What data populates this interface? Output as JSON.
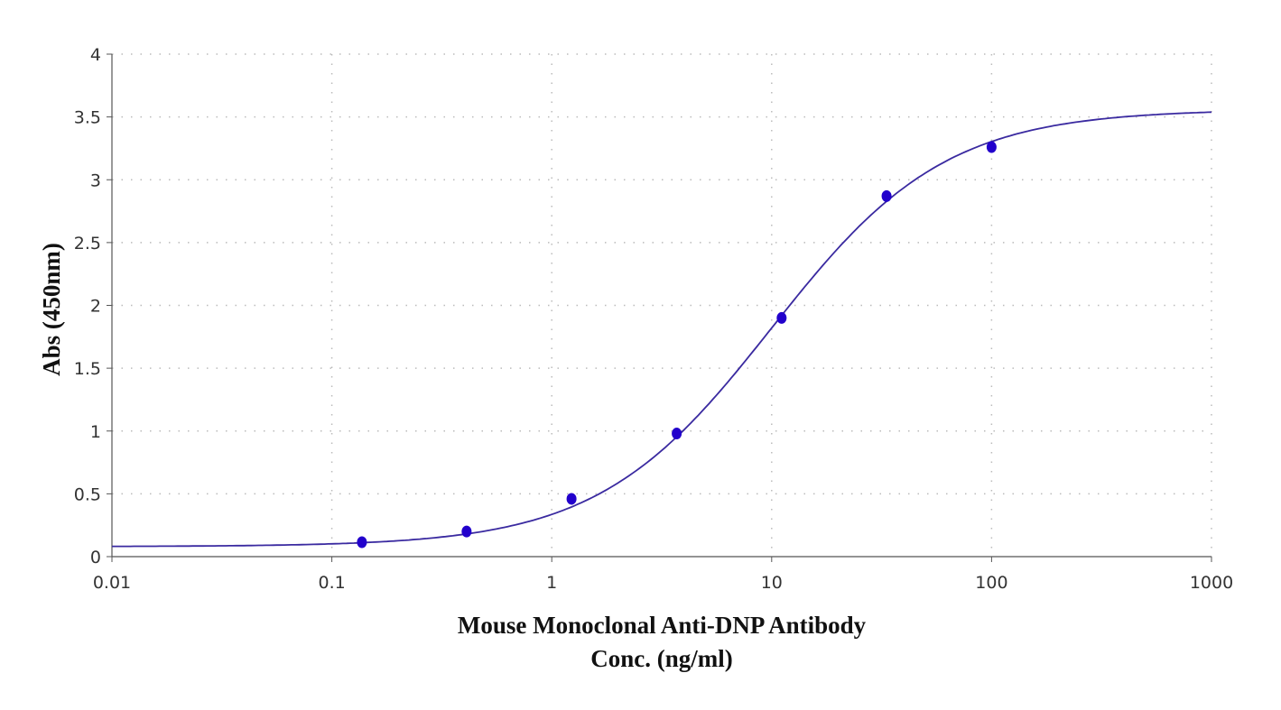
{
  "chart_data": {
    "type": "scatter",
    "title": "",
    "xlabel_lines": [
      "Mouse Monoclonal Anti-DNP Antibody",
      "Conc. (ng/ml)"
    ],
    "ylabel": "Abs (450nm)",
    "x_scale": "log",
    "xlim": [
      0.01,
      1000
    ],
    "ylim": [
      0,
      4
    ],
    "x_ticks": [
      "0.01",
      "0.1",
      "1",
      "10",
      "100",
      "1000"
    ],
    "y_ticks": [
      "0",
      "0.5",
      "1",
      "1.5",
      "2",
      "2.5",
      "3",
      "3.5",
      "4"
    ],
    "grid": true,
    "legend": "none",
    "series": [
      {
        "type": "scatter",
        "x": [
          0.137,
          0.41,
          1.23,
          3.7,
          11.1,
          33.3,
          100
        ],
        "y": [
          0.115,
          0.2,
          0.46,
          0.98,
          1.9,
          2.87,
          3.26
        ],
        "color": "#2200cc"
      },
      {
        "type": "line",
        "fit": {
          "model": "4PL",
          "bottom": 0.08,
          "top": 3.56,
          "ec50": 10,
          "hill": 1.1
        },
        "x_range": [
          0.01,
          1000
        ],
        "color": "#3a2aa0"
      }
    ]
  }
}
